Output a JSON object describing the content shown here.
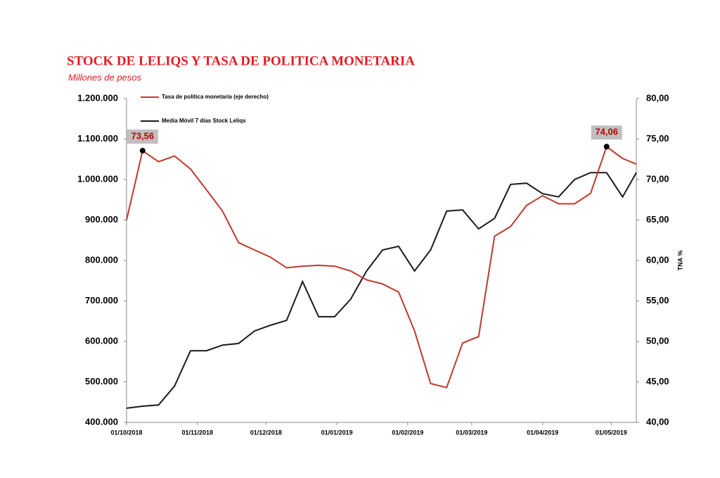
{
  "chart_data": {
    "type": "line",
    "title": "STOCK DE LELIQS Y TASA DE POLITICA MONETARIA",
    "subtitle": "Millones de pesos",
    "y2_label": "TNA %",
    "x": [
      "01/10/2018",
      "08/10/2018",
      "15/10/2018",
      "22/10/2018",
      "29/10/2018",
      "05/11/2018",
      "12/11/2018",
      "19/11/2018",
      "26/11/2018",
      "03/12/2018",
      "10/12/2018",
      "17/12/2018",
      "24/12/2018",
      "31/12/2018",
      "07/01/2019",
      "14/01/2019",
      "21/01/2019",
      "28/01/2019",
      "04/02/2019",
      "11/02/2019",
      "18/02/2019",
      "25/02/2019",
      "04/03/2019",
      "11/03/2019",
      "18/03/2019",
      "25/03/2019",
      "01/04/2019",
      "08/04/2019",
      "15/04/2019",
      "22/04/2019",
      "29/04/2019",
      "06/05/2019",
      "12/05/2019"
    ],
    "xlim": [
      "01/10/2018",
      "12/05/2019"
    ],
    "xticks": [
      "01/10/2018",
      "01/11/2018",
      "01/12/2018",
      "01/01/2019",
      "01/02/2019",
      "01/03/2019",
      "01/04/2019",
      "01/05/2019"
    ],
    "ylim": [
      400000,
      1200000
    ],
    "yticks": [
      {
        "value": 400000,
        "label": "400.000"
      },
      {
        "value": 500000,
        "label": "500.000"
      },
      {
        "value": 600000,
        "label": "600.000"
      },
      {
        "value": 700000,
        "label": "700.000"
      },
      {
        "value": 800000,
        "label": "800.000"
      },
      {
        "value": 900000,
        "label": "900.000"
      },
      {
        "value": 1000000,
        "label": "1.000.000"
      },
      {
        "value": 1100000,
        "label": "1.100.000"
      },
      {
        "value": 1200000,
        "label": "1.200.000"
      }
    ],
    "y2lim": [
      40,
      80
    ],
    "y2ticks": [
      {
        "value": 40,
        "label": "40,00"
      },
      {
        "value": 45,
        "label": "45,00"
      },
      {
        "value": 50,
        "label": "50,00"
      },
      {
        "value": 55,
        "label": "55,00"
      },
      {
        "value": 60,
        "label": "60,00"
      },
      {
        "value": 65,
        "label": "65,00"
      },
      {
        "value": 70,
        "label": "70,00"
      },
      {
        "value": 75,
        "label": "75,00"
      },
      {
        "value": 80,
        "label": "80,00"
      }
    ],
    "series": [
      {
        "name": "Tasa de política monetaria (eje derecho)",
        "color": "#c0392b",
        "axis": "y2",
        "values": [
          65.0,
          73.56,
          72.2,
          72.9,
          71.3,
          68.7,
          66.1,
          62.2,
          61.3,
          60.4,
          59.1,
          59.3,
          59.4,
          59.3,
          58.7,
          57.6,
          57.1,
          56.1,
          51.3,
          44.8,
          44.3,
          49.8,
          50.6,
          63.0,
          64.2,
          66.8,
          68.0,
          67.0,
          67.0,
          68.3,
          74.06,
          72.6,
          71.9
        ],
        "value_labels": [
          null,
          "73,56",
          null,
          null,
          null,
          null,
          null,
          null,
          null,
          null,
          null,
          null,
          null,
          null,
          null,
          null,
          null,
          null,
          null,
          null,
          null,
          null,
          null,
          null,
          null,
          null,
          null,
          null,
          null,
          null,
          "74,06",
          null,
          null
        ]
      },
      {
        "name": "Media Móvil 7 días Stock Leliqs",
        "color": "#1a1a1a",
        "values": [
          435000,
          440000,
          443000,
          490000,
          577000,
          577000,
          591000,
          595000,
          626000,
          640000,
          652000,
          748000,
          661000,
          661000,
          704000,
          774000,
          826000,
          835000,
          774000,
          826000,
          922000,
          925000,
          878000,
          904000,
          988000,
          991000,
          965000,
          957000,
          1000000,
          1017000,
          1017000,
          957000,
          1017000
        ]
      }
    ]
  }
}
